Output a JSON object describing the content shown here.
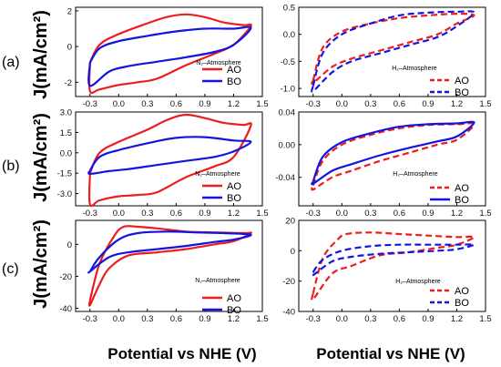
{
  "row_labels": [
    "(a)",
    "(b)",
    "(c)"
  ],
  "ylabel": "J(mA/cm²)",
  "xlabel": "Potential vs NHE (V)",
  "colors": {
    "AO": "#ee1c1c",
    "BO": "#1414e0"
  },
  "chart_data": [
    {
      "type": "line",
      "panel": "a-left",
      "annotation": "N₂–Atmosphere",
      "xlim": [
        -0.45,
        1.5
      ],
      "ylim": [
        -2.8,
        2.2
      ],
      "xticks": [
        "-0.3",
        "0.0",
        "0.3",
        "0.6",
        "0.9",
        "1.2",
        "1.5"
      ],
      "yticks": [
        -2,
        0,
        2
      ],
      "series": [
        {
          "name": "AO",
          "color": "#ee1c1c",
          "dash": "solid",
          "upper": [
            [
              -0.3,
              -0.9
            ],
            [
              -0.2,
              0.1
            ],
            [
              0,
              0.7
            ],
            [
              0.3,
              1.3
            ],
            [
              0.5,
              1.65
            ],
            [
              0.7,
              1.8
            ],
            [
              0.9,
              1.65
            ],
            [
              1.1,
              1.35
            ],
            [
              1.3,
              1.2
            ],
            [
              1.38,
              1.15
            ]
          ],
          "lower": [
            [
              1.38,
              0.7
            ],
            [
              1.2,
              0.1
            ],
            [
              1.0,
              -0.4
            ],
            [
              0.7,
              -1.05
            ],
            [
              0.4,
              -1.8
            ],
            [
              0.2,
              -2.0
            ],
            [
              0.0,
              -2.15
            ],
            [
              -0.2,
              -2.4
            ],
            [
              -0.3,
              -2.5
            ]
          ]
        },
        {
          "name": "BO",
          "color": "#1414e0",
          "dash": "solid",
          "upper": [
            [
              -0.3,
              -0.9
            ],
            [
              -0.2,
              -0.1
            ],
            [
              0,
              0.3
            ],
            [
              0.3,
              0.6
            ],
            [
              0.6,
              0.85
            ],
            [
              0.9,
              1.0
            ],
            [
              1.2,
              1.0
            ],
            [
              1.38,
              1.05
            ]
          ],
          "lower": [
            [
              1.38,
              0.6
            ],
            [
              1.2,
              0.1
            ],
            [
              1.0,
              -0.3
            ],
            [
              0.7,
              -0.6
            ],
            [
              0.4,
              -0.85
            ],
            [
              0.1,
              -1.1
            ],
            [
              -0.1,
              -1.4
            ],
            [
              -0.3,
              -2.2
            ]
          ]
        }
      ]
    },
    {
      "type": "line",
      "panel": "a-right",
      "annotation": "H₂–Atmosphere",
      "xlim": [
        -0.45,
        1.5
      ],
      "ylim": [
        -1.15,
        0.5
      ],
      "xticks": [
        "-0.3",
        "0.0",
        "0.3",
        "0.6",
        "0.9",
        "1.2",
        "1.5"
      ],
      "yticks": [
        -1.0,
        -0.5,
        0.0,
        0.5
      ],
      "series": [
        {
          "name": "AO",
          "color": "#ee1c1c",
          "dash": "dashed",
          "upper": [
            [
              -0.3,
              -0.85
            ],
            [
              -0.2,
              -0.25
            ],
            [
              0,
              0.05
            ],
            [
              0.3,
              0.2
            ],
            [
              0.6,
              0.3
            ],
            [
              0.9,
              0.35
            ],
            [
              1.2,
              0.38
            ],
            [
              1.38,
              0.35
            ]
          ],
          "lower": [
            [
              1.38,
              0.3
            ],
            [
              1.2,
              0.2
            ],
            [
              1.0,
              0.0
            ],
            [
              0.7,
              -0.15
            ],
            [
              0.4,
              -0.3
            ],
            [
              0.1,
              -0.45
            ],
            [
              -0.1,
              -0.6
            ],
            [
              -0.3,
              -0.9
            ]
          ]
        },
        {
          "name": "BO",
          "color": "#1414e0",
          "dash": "dashed",
          "upper": [
            [
              -0.3,
              -0.95
            ],
            [
              -0.2,
              -0.35
            ],
            [
              0,
              0.0
            ],
            [
              0.3,
              0.2
            ],
            [
              0.6,
              0.35
            ],
            [
              0.9,
              0.4
            ],
            [
              1.2,
              0.42
            ],
            [
              1.38,
              0.4
            ]
          ],
          "lower": [
            [
              1.38,
              0.25
            ],
            [
              1.2,
              0.15
            ],
            [
              1.0,
              -0.05
            ],
            [
              0.7,
              -0.2
            ],
            [
              0.4,
              -0.35
            ],
            [
              0.1,
              -0.5
            ],
            [
              -0.1,
              -0.7
            ],
            [
              -0.3,
              -1.05
            ]
          ]
        }
      ]
    },
    {
      "type": "line",
      "panel": "b-left",
      "annotation": "N₂–Atmosphere",
      "xlim": [
        -0.45,
        1.5
      ],
      "ylim": [
        -3.9,
        3.0
      ],
      "xticks": [
        "-0.3",
        "0.0",
        "0.3",
        "0.6",
        "0.9",
        "1.2",
        "1.5"
      ],
      "yticks": [
        -3.0,
        -1.5,
        0.0,
        1.5,
        3.0
      ],
      "series": [
        {
          "name": "AO",
          "color": "#ee1c1c",
          "dash": "solid",
          "upper": [
            [
              -0.3,
              -1.5
            ],
            [
              -0.2,
              0.0
            ],
            [
              0,
              0.8
            ],
            [
              0.3,
              1.7
            ],
            [
              0.5,
              2.4
            ],
            [
              0.7,
              2.8
            ],
            [
              0.9,
              2.55
            ],
            [
              1.1,
              2.2
            ],
            [
              1.3,
              2.05
            ],
            [
              1.38,
              2.0
            ]
          ],
          "lower": [
            [
              1.38,
              0.8
            ],
            [
              1.2,
              -0.3
            ],
            [
              1.0,
              -1.0
            ],
            [
              0.7,
              -1.8
            ],
            [
              0.4,
              -2.9
            ],
            [
              0.2,
              -3.1
            ],
            [
              0.0,
              -3.2
            ],
            [
              -0.2,
              -3.5
            ],
            [
              -0.3,
              -3.8
            ]
          ]
        },
        {
          "name": "BO",
          "color": "#1414e0",
          "dash": "solid",
          "upper": [
            [
              -0.3,
              -1.3
            ],
            [
              -0.2,
              -0.3
            ],
            [
              0,
              0.2
            ],
            [
              0.3,
              0.7
            ],
            [
              0.6,
              1.1
            ],
            [
              0.9,
              1.15
            ],
            [
              1.2,
              0.9
            ],
            [
              1.38,
              0.8
            ]
          ],
          "lower": [
            [
              1.38,
              0.5
            ],
            [
              1.2,
              0.1
            ],
            [
              1.0,
              -0.3
            ],
            [
              0.7,
              -0.6
            ],
            [
              0.4,
              -0.9
            ],
            [
              0.1,
              -1.2
            ],
            [
              -0.1,
              -1.35
            ],
            [
              -0.3,
              -1.55
            ]
          ]
        }
      ]
    },
    {
      "type": "line",
      "panel": "b-right",
      "annotation": "H₂–Atmosphere",
      "xlim": [
        -0.45,
        1.5
      ],
      "ylim": [
        -0.075,
        0.04
      ],
      "xticks": [
        "-0.3",
        "0.0",
        "0.3",
        "0.6",
        "0.9",
        "1.2",
        "1.5"
      ],
      "yticks": [
        -0.04,
        0.0,
        0.04
      ],
      "series": [
        {
          "name": "AO",
          "color": "#ee1c1c",
          "dash": "dashed",
          "upper": [
            [
              -0.3,
              -0.05
            ],
            [
              -0.2,
              -0.02
            ],
            [
              0,
              0.0
            ],
            [
              0.3,
              0.012
            ],
            [
              0.6,
              0.02
            ],
            [
              0.9,
              0.024
            ],
            [
              1.2,
              0.025
            ],
            [
              1.38,
              0.025
            ]
          ],
          "lower": [
            [
              1.38,
              0.012
            ],
            [
              1.2,
              0.006
            ],
            [
              1.0,
              0.0
            ],
            [
              0.7,
              -0.01
            ],
            [
              0.4,
              -0.02
            ],
            [
              0.1,
              -0.032
            ],
            [
              -0.1,
              -0.04
            ],
            [
              -0.3,
              -0.055
            ]
          ]
        },
        {
          "name": "BO",
          "color": "#1414e0",
          "dash": "solid",
          "upper": [
            [
              -0.3,
              -0.045
            ],
            [
              -0.2,
              -0.015
            ],
            [
              0,
              0.003
            ],
            [
              0.3,
              0.014
            ],
            [
              0.6,
              0.022
            ],
            [
              0.9,
              0.025
            ],
            [
              1.2,
              0.026
            ],
            [
              1.38,
              0.027
            ]
          ],
          "lower": [
            [
              1.38,
              0.018
            ],
            [
              1.2,
              0.01
            ],
            [
              1.0,
              0.004
            ],
            [
              0.7,
              -0.004
            ],
            [
              0.4,
              -0.013
            ],
            [
              0.1,
              -0.024
            ],
            [
              -0.1,
              -0.032
            ],
            [
              -0.3,
              -0.048
            ]
          ]
        }
      ]
    },
    {
      "type": "line",
      "panel": "c-left",
      "annotation": "N₂–Atmosphere",
      "xlim": [
        -0.45,
        1.5
      ],
      "ylim": [
        -42,
        15
      ],
      "xticks": [
        "-0.3",
        "0.0",
        "0.3",
        "0.6",
        "0.9",
        "1.2",
        "1.5"
      ],
      "yticks": [
        -40,
        -20,
        0
      ],
      "series": [
        {
          "name": "AO",
          "color": "#ee1c1c",
          "dash": "solid",
          "upper": [
            [
              -0.3,
              -35
            ],
            [
              -0.2,
              -12
            ],
            [
              -0.05,
              5
            ],
            [
              0.05,
              11
            ],
            [
              0.2,
              11
            ],
            [
              0.4,
              10
            ],
            [
              0.7,
              8
            ],
            [
              1.0,
              7.5
            ],
            [
              1.3,
              7
            ],
            [
              1.38,
              7
            ]
          ],
          "lower": [
            [
              1.38,
              4
            ],
            [
              1.2,
              2
            ],
            [
              1.0,
              0
            ],
            [
              0.7,
              -3
            ],
            [
              0.4,
              -5
            ],
            [
              0.1,
              -7
            ],
            [
              -0.1,
              -15
            ],
            [
              -0.2,
              -25
            ],
            [
              -0.3,
              -38
            ]
          ]
        },
        {
          "name": "BO",
          "color": "#1414e0",
          "dash": "solid",
          "upper": [
            [
              -0.3,
              -17
            ],
            [
              -0.2,
              -8
            ],
            [
              0,
              3
            ],
            [
              0.2,
              7
            ],
            [
              0.5,
              8
            ],
            [
              0.8,
              7.5
            ],
            [
              1.1,
              7
            ],
            [
              1.38,
              6
            ]
          ],
          "lower": [
            [
              1.38,
              4
            ],
            [
              1.2,
              3
            ],
            [
              1.0,
              1.5
            ],
            [
              0.7,
              -1
            ],
            [
              0.4,
              -3
            ],
            [
              0.1,
              -5
            ],
            [
              -0.1,
              -8
            ],
            [
              -0.3,
              -17
            ]
          ]
        }
      ]
    },
    {
      "type": "line",
      "panel": "c-right",
      "annotation": "H₂–Atmosphere",
      "xlim": [
        -0.45,
        1.5
      ],
      "ylim": [
        -40,
        20
      ],
      "xticks": [
        "-0.3",
        "0.0",
        "0.3",
        "0.6",
        "0.9",
        "1.2",
        "1.5"
      ],
      "yticks": [
        -40,
        -20,
        0,
        20
      ],
      "series": [
        {
          "name": "AO",
          "color": "#ee1c1c",
          "dash": "dashed",
          "upper": [
            [
              -0.3,
              -28
            ],
            [
              -0.2,
              -5
            ],
            [
              -0.05,
              7
            ],
            [
              0.05,
              11
            ],
            [
              0.3,
              12
            ],
            [
              0.6,
              11
            ],
            [
              0.9,
              10
            ],
            [
              1.2,
              9
            ],
            [
              1.38,
              9
            ]
          ],
          "lower": [
            [
              1.38,
              6
            ],
            [
              1.2,
              4
            ],
            [
              1.0,
              2
            ],
            [
              0.7,
              -1
            ],
            [
              0.4,
              -3
            ],
            [
              0.1,
              -10
            ],
            [
              -0.1,
              -15
            ],
            [
              -0.3,
              -32
            ]
          ]
        },
        {
          "name": "BO",
          "color": "#1414e0",
          "dash": "dashed",
          "upper": [
            [
              -0.3,
              -14
            ],
            [
              -0.2,
              -6
            ],
            [
              0,
              0
            ],
            [
              0.3,
              3
            ],
            [
              0.6,
              4
            ],
            [
              0.9,
              4
            ],
            [
              1.2,
              4
            ],
            [
              1.38,
              4
            ]
          ],
          "lower": [
            [
              1.38,
              2
            ],
            [
              1.2,
              1
            ],
            [
              1.0,
              0
            ],
            [
              0.7,
              -1
            ],
            [
              0.4,
              -2
            ],
            [
              0.1,
              -4
            ],
            [
              -0.1,
              -7
            ],
            [
              -0.3,
              -16
            ]
          ]
        }
      ]
    }
  ]
}
